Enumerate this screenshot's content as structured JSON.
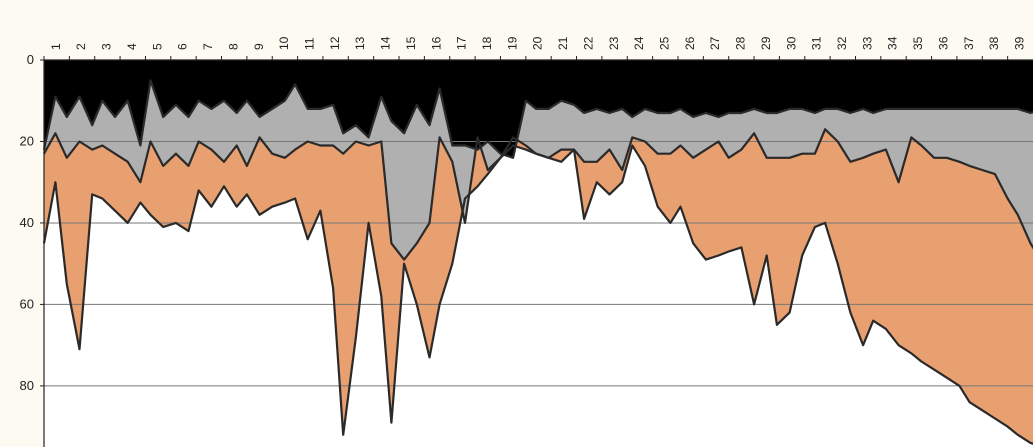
{
  "chart_data": {
    "type": "area",
    "title": "",
    "xlabel": "",
    "ylabel": "",
    "x_axis_position": "top",
    "y_inverted": true,
    "ylim": [
      0,
      95
    ],
    "y_ticks": [
      0,
      20,
      40,
      60,
      80
    ],
    "grid": true,
    "legend": "none",
    "categories": [
      "1",
      "2",
      "3",
      "4",
      "5",
      "6",
      "7",
      "8",
      "9",
      "10",
      "11",
      "12",
      "13",
      "14",
      "15",
      "16",
      "17",
      "18",
      "19",
      "20",
      "21",
      "22",
      "23",
      "24",
      "25",
      "26",
      "27",
      "28",
      "29",
      "30",
      "31",
      "32",
      "33",
      "34",
      "35",
      "36",
      "37",
      "38",
      "39"
    ],
    "x": [
      0.0,
      0.45,
      0.9,
      1.4,
      1.9,
      2.3,
      2.8,
      3.3,
      3.8,
      4.2,
      4.7,
      5.2,
      5.7,
      6.1,
      6.6,
      7.1,
      7.6,
      8.0,
      8.5,
      9.0,
      9.5,
      9.9,
      10.4,
      10.9,
      11.4,
      11.8,
      12.3,
      12.8,
      13.3,
      13.7,
      14.2,
      14.7,
      15.2,
      15.6,
      16.1,
      16.6,
      17.1,
      17.5,
      18.0,
      18.5,
      19.0,
      19.4,
      19.9,
      20.4,
      20.9,
      21.3,
      21.8,
      22.3,
      22.8,
      23.2,
      23.7,
      24.2,
      24.7,
      25.1,
      25.6,
      26.1,
      26.6,
      27.0,
      27.5,
      28.0,
      28.5,
      28.9,
      29.4,
      29.9,
      30.4,
      30.8,
      31.3,
      31.8,
      32.3,
      32.7,
      33.2,
      33.7,
      34.2,
      34.6,
      35.1,
      35.6,
      36.1,
      36.5,
      37.0,
      37.5,
      38.0,
      38.4,
      38.9,
      39.4
    ],
    "series": [
      {
        "color": "#000000",
        "values": [
          22,
          9,
          14,
          9,
          16,
          10,
          14,
          10,
          21,
          5,
          14,
          11,
          14,
          10,
          12,
          10,
          13,
          10,
          14,
          12,
          10,
          6,
          12,
          12,
          11,
          18,
          16,
          19,
          9,
          15,
          18,
          11,
          16,
          7,
          21,
          21,
          22,
          20,
          23,
          24,
          10,
          12,
          12,
          10,
          11,
          13,
          12,
          13,
          12,
          14,
          12,
          13,
          13,
          12,
          14,
          13,
          14,
          13,
          13,
          12,
          13,
          13,
          12,
          12,
          13,
          12,
          12,
          13,
          12,
          13,
          12,
          12,
          12,
          12,
          12,
          12,
          12,
          12,
          12,
          12,
          12,
          12,
          13,
          12
        ]
      },
      {
        "color": "#b0b0b0",
        "values": [
          23,
          18,
          24,
          20,
          22,
          21,
          23,
          25,
          30,
          20,
          26,
          23,
          26,
          20,
          22,
          25,
          21,
          26,
          19,
          23,
          24,
          22,
          20,
          21,
          21,
          23,
          20,
          21,
          20,
          45,
          49,
          45,
          40,
          19,
          25,
          40,
          19,
          27,
          24,
          19,
          21,
          23,
          24,
          22,
          22,
          25,
          25,
          22,
          27,
          19,
          20,
          23,
          23,
          21,
          24,
          22,
          20,
          24,
          22,
          18,
          24,
          24,
          24,
          23,
          23,
          17,
          20,
          25,
          24,
          23,
          22,
          30,
          19,
          21,
          24,
          24,
          25,
          26,
          27,
          28,
          34,
          38,
          45,
          50
        ]
      },
      {
        "color": "#e8a070",
        "values": [
          45,
          30,
          55,
          71,
          33,
          34,
          37,
          40,
          35,
          38,
          41,
          40,
          42,
          32,
          36,
          31,
          36,
          33,
          38,
          36,
          35,
          34,
          44,
          37,
          56,
          92,
          68,
          40,
          58,
          89,
          50,
          60,
          73,
          60,
          50,
          34,
          31,
          28,
          24,
          21,
          22,
          23,
          24,
          25,
          22,
          39,
          30,
          33,
          30,
          21,
          26,
          36,
          40,
          36,
          45,
          49,
          48,
          47,
          46,
          60,
          48,
          65,
          62,
          48,
          41,
          40,
          50,
          62,
          70,
          64,
          66,
          70,
          72,
          74,
          76,
          78,
          80,
          84,
          86,
          88,
          90,
          92,
          94,
          95
        ]
      }
    ]
  }
}
